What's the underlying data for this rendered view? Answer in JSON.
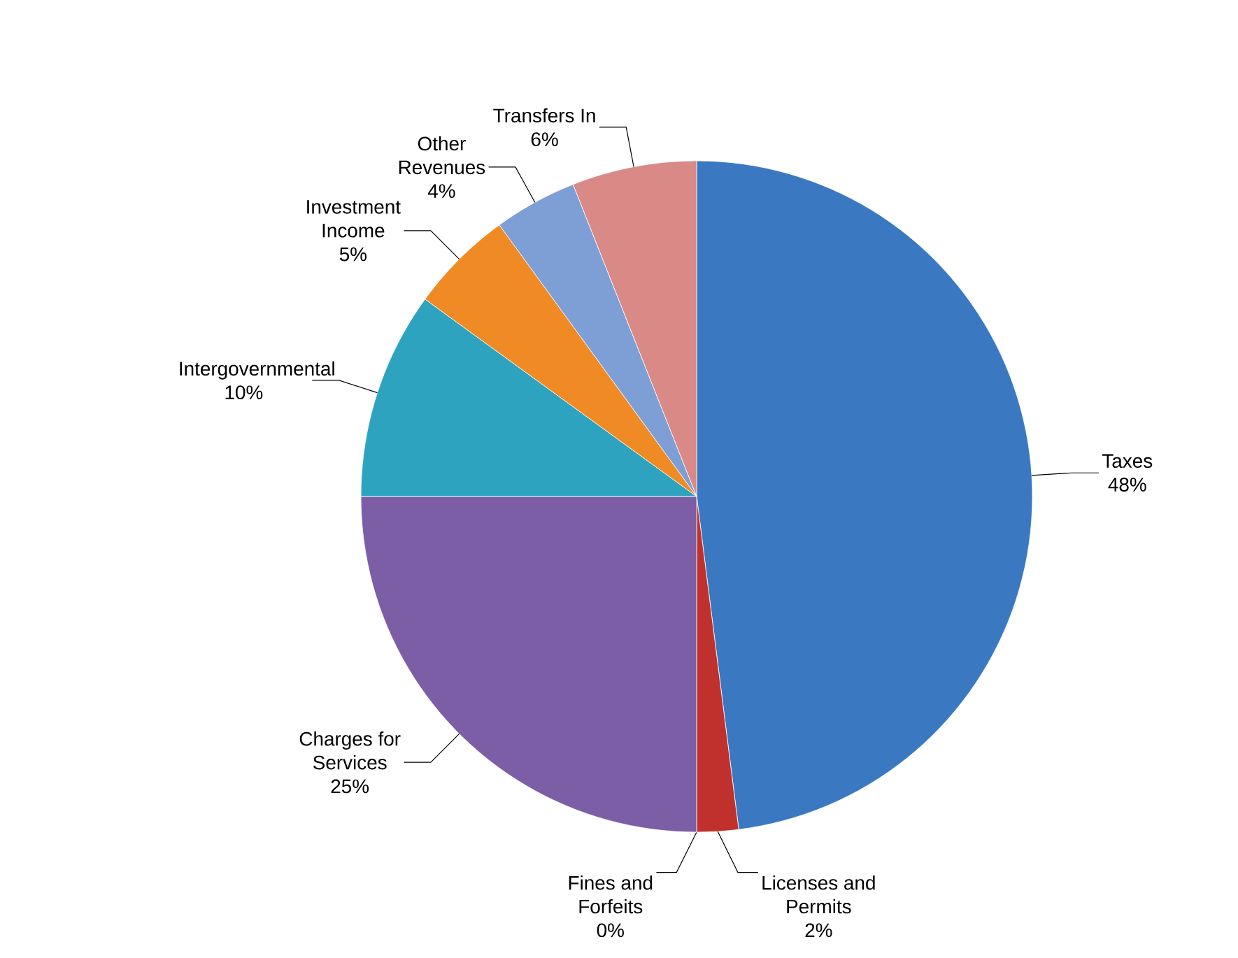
{
  "chart_data": {
    "type": "pie",
    "categories": [
      "Taxes",
      "Licenses and Permits",
      "Fines and Forfeits",
      "Charges for Services",
      "Intergovernmental",
      "Investment Income",
      "Other Revenues",
      "Transfers In"
    ],
    "values": [
      48,
      2,
      0,
      25,
      10,
      5,
      4,
      6
    ],
    "value_labels": [
      "48%",
      "2%",
      "0%",
      "25%",
      "10%",
      "5%",
      "4%",
      "6%"
    ],
    "colors": [
      "#3a78c2",
      "#c0312e",
      "#d9d9d9",
      "#7b5ea6",
      "#2ea3bf",
      "#f08a24",
      "#7e9fd6",
      "#d98986"
    ]
  }
}
